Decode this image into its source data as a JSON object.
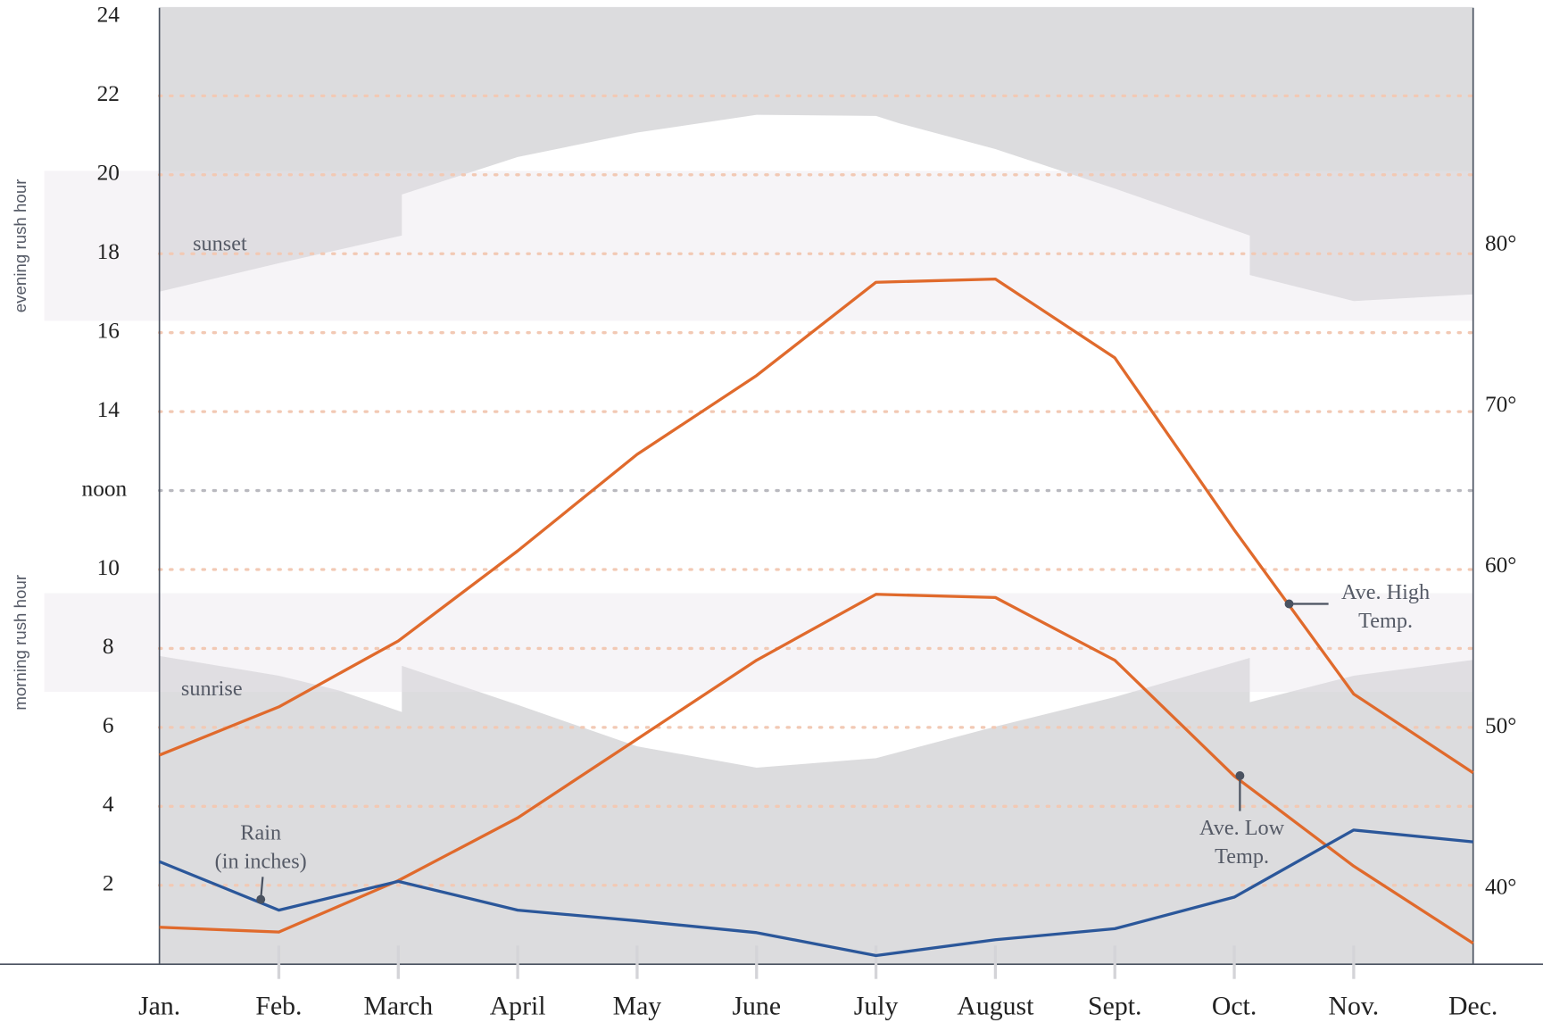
{
  "chart_data": {
    "type": "line",
    "categories": [
      "Jan.",
      "Feb.",
      "March",
      "April",
      "May",
      "June",
      "July",
      "August",
      "Sept.",
      "Oct.",
      "Nov.",
      "Dec."
    ],
    "ylim": [
      0,
      24
    ],
    "yticks": [
      2,
      4,
      6,
      8,
      10,
      {
        "value": 12,
        "label": "noon"
      },
      14,
      16,
      18,
      20,
      22,
      24
    ],
    "y2lim": [
      35.3,
      94.2
    ],
    "y2ticks": [
      {
        "value": 40,
        "label": "40°"
      },
      {
        "value": 50,
        "label": "50°"
      },
      {
        "value": 60,
        "label": "60°"
      },
      {
        "value": 70,
        "label": "70°"
      },
      {
        "value": 80,
        "label": "80°"
      }
    ],
    "grid": true,
    "series": [
      {
        "name": "Ave. High Temp.",
        "color": "#e06a2c",
        "axis": "y2",
        "values": [
          48.3,
          51.3,
          55.4,
          61.0,
          67.0,
          71.9,
          77.7,
          77.9,
          73.0,
          62.3,
          52.1,
          47.2
        ]
      },
      {
        "name": "Ave. Low Temp.",
        "color": "#e06a2c",
        "axis": "y2",
        "values": [
          37.6,
          37.3,
          40.5,
          44.4,
          49.3,
          54.2,
          58.3,
          58.1,
          54.2,
          47.0,
          41.4,
          36.6
        ]
      },
      {
        "name": "Rain (in inches)",
        "color": "#2b579a",
        "values": [
          2.6,
          1.37,
          2.1,
          1.37,
          1.1,
          0.8,
          0.22,
          0.62,
          0.9,
          1.7,
          3.4,
          3.1
        ]
      }
    ],
    "sunset": {
      "label": "sunset",
      "color": "#dcdcde",
      "x": [
        0,
        1,
        2.03,
        2.03,
        3,
        4,
        5,
        6,
        6.2,
        7,
        8,
        9.13,
        9.13,
        10,
        11
      ],
      "values": [
        17.04,
        17.76,
        18.46,
        19.5,
        20.45,
        21.07,
        21.52,
        21.49,
        21.3,
        20.65,
        19.65,
        18.46,
        17.46,
        16.8,
        16.97
      ]
    },
    "sunrise": {
      "label": "sunrise",
      "color": "#dcdcde",
      "x": [
        0,
        1,
        1.5,
        2.03,
        2.03,
        3,
        4,
        5,
        6,
        7,
        8,
        9.13,
        9.13,
        10,
        11
      ],
      "values": [
        7.81,
        7.31,
        6.94,
        6.39,
        7.56,
        6.57,
        5.52,
        4.98,
        5.22,
        6.02,
        6.77,
        7.76,
        6.64,
        7.31,
        7.71
      ]
    },
    "bands": [
      {
        "label": "evening rush hour",
        "range": [
          16.3,
          20.1
        ]
      },
      {
        "label": "morning rush hour",
        "range": [
          6.9,
          9.4
        ]
      }
    ],
    "annotations": [
      {
        "lines": [
          "Rain",
          "(in inches)"
        ]
      },
      {
        "lines": [
          "Ave. High",
          "Temp."
        ]
      },
      {
        "lines": [
          "Ave. Low",
          "Temp."
        ]
      }
    ]
  }
}
